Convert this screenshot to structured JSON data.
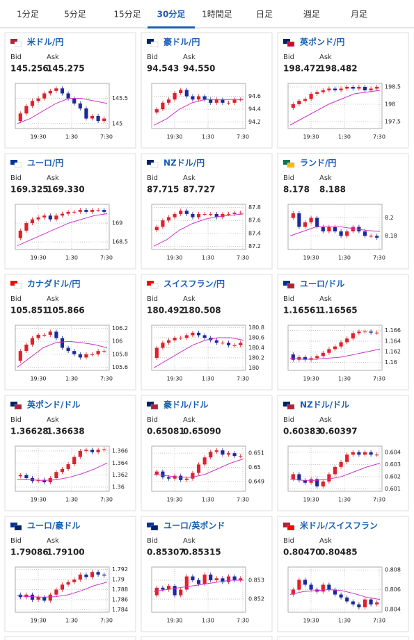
{
  "tabs": [
    "1分足",
    "5分足",
    "15分足",
    "30分足",
    "1時間足",
    "日足",
    "週足",
    "月足"
  ],
  "active_tab": 3,
  "quote_labels": [
    "Bid",
    "Ask"
  ],
  "time_labels": [
    "19:30",
    "1:30",
    "7:30"
  ],
  "colors": {
    "up": "#e0202a",
    "down": "#1c2a9c",
    "ma": "#cc33cc",
    "title": "#1a5fb4"
  },
  "chart_data": [
    {
      "type": "candlestick",
      "title": "米ドル/円",
      "bid": "145.256",
      "ask": "145.275",
      "ylim": [
        144.9,
        145.8
      ],
      "yticks": [
        145,
        145.5
      ],
      "closes": [
        145.05,
        145.2,
        145.35,
        145.45,
        145.5,
        145.6,
        145.65,
        145.7,
        145.6,
        145.5,
        145.4,
        145.3,
        145.1,
        145.15,
        145.05,
        145.1
      ],
      "ma": [
        145.0,
        145.1,
        145.25,
        145.4,
        145.5,
        145.5,
        145.45,
        145.4
      ]
    },
    {
      "type": "candlestick",
      "title": "豪ドル/円",
      "bid": "94.543",
      "ask": "94.550",
      "ylim": [
        94.1,
        94.8
      ],
      "yticks": [
        94.2,
        94.4,
        94.6
      ],
      "closes": [
        94.35,
        94.4,
        94.5,
        94.55,
        94.65,
        94.7,
        94.6,
        94.55,
        94.6,
        94.55,
        94.5,
        94.55,
        94.5,
        94.5,
        94.55,
        94.55
      ],
      "ma": [
        94.15,
        94.25,
        94.4,
        94.5,
        94.55,
        94.55,
        94.55,
        94.55
      ]
    },
    {
      "type": "candlestick",
      "title": "英ポンド/円",
      "bid": "198.472",
      "ask": "198.482",
      "ylim": [
        197.3,
        198.6
      ],
      "yticks": [
        197.5,
        198,
        198.5
      ],
      "closes": [
        197.9,
        198.0,
        198.1,
        198.15,
        198.3,
        198.35,
        198.4,
        198.45,
        198.4,
        198.45,
        198.5,
        198.45,
        198.5,
        198.4,
        198.45,
        198.5
      ],
      "ma": [
        197.4,
        197.6,
        197.8,
        198.0,
        198.15,
        198.3,
        198.35,
        198.4
      ]
    },
    {
      "type": "candlestick",
      "title": "ユーロ/円",
      "bid": "169.325",
      "ask": "169.330",
      "ylim": [
        168.3,
        169.5
      ],
      "yticks": [
        168.5,
        169
      ],
      "closes": [
        168.6,
        168.8,
        169.0,
        169.1,
        169.15,
        169.2,
        169.1,
        169.2,
        169.25,
        169.3,
        169.3,
        169.35,
        169.3,
        169.35,
        169.35,
        169.3
      ],
      "ma": [
        168.4,
        168.55,
        168.7,
        168.85,
        169.0,
        169.1,
        169.2,
        169.25
      ]
    },
    {
      "type": "candlestick",
      "title": "NZドル/円",
      "bid": "87.715",
      "ask": "87.727",
      "ylim": [
        87.15,
        87.85
      ],
      "yticks": [
        87.2,
        87.4,
        87.6,
        87.8
      ],
      "closes": [
        87.45,
        87.5,
        87.6,
        87.65,
        87.7,
        87.75,
        87.7,
        87.65,
        87.7,
        87.7,
        87.7,
        87.65,
        87.7,
        87.7,
        87.72,
        87.72
      ],
      "ma": [
        87.2,
        87.3,
        87.45,
        87.55,
        87.62,
        87.66,
        87.68,
        87.7
      ]
    },
    {
      "type": "candlestick",
      "title": "ランド/円",
      "bid": "8.178",
      "ask": "8.188",
      "ylim": [
        8.165,
        8.215
      ],
      "yticks": [
        8.18,
        8.2
      ],
      "closes": [
        8.2,
        8.205,
        8.19,
        8.195,
        8.2,
        8.19,
        8.185,
        8.19,
        8.185,
        8.18,
        8.185,
        8.19,
        8.185,
        8.18,
        8.18,
        8.178
      ],
      "ma": [
        8.18,
        8.185,
        8.19,
        8.19,
        8.19,
        8.188,
        8.186,
        8.185
      ]
    },
    {
      "type": "candlestick",
      "title": "カナダドル/円",
      "bid": "105.851",
      "ask": "105.866",
      "ylim": [
        105.55,
        106.25
      ],
      "yticks": [
        105.6,
        105.8,
        106,
        106.2
      ],
      "closes": [
        105.7,
        105.85,
        105.95,
        106.05,
        106.1,
        106.1,
        106.15,
        106.05,
        105.9,
        105.85,
        105.8,
        105.75,
        105.8,
        105.8,
        105.85,
        105.85
      ],
      "ma": [
        105.6,
        105.75,
        105.9,
        105.98,
        106.0,
        105.98,
        105.95,
        105.9
      ]
    },
    {
      "type": "candlestick",
      "title": "スイスフラン/円",
      "bid": "180.492",
      "ask": "180.508",
      "ylim": [
        179.95,
        180.85
      ],
      "yticks": [
        180,
        180.2,
        180.4,
        180.6,
        180.8
      ],
      "closes": [
        180.2,
        180.4,
        180.5,
        180.55,
        180.6,
        180.6,
        180.65,
        180.7,
        180.65,
        180.6,
        180.55,
        180.5,
        180.5,
        180.45,
        180.45,
        180.5
      ],
      "ma": [
        180.0,
        180.15,
        180.3,
        180.45,
        180.55,
        180.6,
        180.6,
        180.55
      ]
    },
    {
      "type": "candlestick",
      "title": "ユーロ/ドル",
      "bid": "1.16561",
      "ask": "1.16565",
      "ylim": [
        1.1585,
        1.167
      ],
      "yticks": [
        1.16,
        1.162,
        1.164,
        1.166
      ],
      "closes": [
        1.1615,
        1.1605,
        1.161,
        1.1605,
        1.1608,
        1.1612,
        1.1618,
        1.1625,
        1.163,
        1.1638,
        1.1645,
        1.1655,
        1.1658,
        1.1658,
        1.1656,
        1.1656
      ],
      "ma": [
        1.1608,
        1.1606,
        1.1606,
        1.1608,
        1.161,
        1.1615,
        1.162,
        1.1625
      ]
    },
    {
      "type": "candlestick",
      "title": "英ポンド/ドル",
      "bid": "1.36628",
      "ask": "1.36638",
      "ylim": [
        1.3593,
        1.3668
      ],
      "yticks": [
        1.36,
        1.362,
        1.364,
        1.366
      ],
      "closes": [
        1.3618,
        1.362,
        1.3615,
        1.361,
        1.3612,
        1.3608,
        1.3615,
        1.3625,
        1.363,
        1.3638,
        1.365,
        1.366,
        1.3662,
        1.3658,
        1.3662,
        1.3663
      ],
      "ma": [
        1.3612,
        1.3612,
        1.3611,
        1.3612,
        1.3616,
        1.3622,
        1.363,
        1.364
      ]
    },
    {
      "type": "candlestick",
      "title": "豪ドル/ドル",
      "bid": "0.65081",
      "ask": "0.65090",
      "ylim": [
        0.6483,
        0.6515
      ],
      "yticks": [
        0.649,
        0.65,
        0.651
      ],
      "closes": [
        0.6495,
        0.6497,
        0.6493,
        0.6492,
        0.6494,
        0.6491,
        0.6492,
        0.6496,
        0.6502,
        0.6507,
        0.6511,
        0.6512,
        0.6509,
        0.651,
        0.6508,
        0.6508
      ],
      "ma": [
        0.6495,
        0.6494,
        0.6493,
        0.6493,
        0.6495,
        0.6499,
        0.6503,
        0.6506
      ]
    },
    {
      "type": "candlestick",
      "title": "NZドル/ドル",
      "bid": "0.60383",
      "ask": "0.60397",
      "ylim": [
        0.6008,
        0.6045
      ],
      "yticks": [
        0.601,
        0.602,
        0.603,
        0.604
      ],
      "closes": [
        0.6018,
        0.6022,
        0.6017,
        0.6015,
        0.6018,
        0.6012,
        0.6016,
        0.6022,
        0.6028,
        0.6032,
        0.6038,
        0.604,
        0.6038,
        0.604,
        0.6038,
        0.6038
      ],
      "ma": [
        0.6018,
        0.6017,
        0.6017,
        0.6018,
        0.602,
        0.6024,
        0.6028,
        0.6031
      ]
    },
    {
      "type": "candlestick",
      "title": "ユーロ/豪ドル",
      "bid": "1.79086",
      "ask": "1.79100",
      "ylim": [
        1.7835,
        1.7925
      ],
      "yticks": [
        1.784,
        1.786,
        1.788,
        1.79,
        1.792
      ],
      "closes": [
        1.787,
        1.7865,
        1.787,
        1.786,
        1.7865,
        1.7858,
        1.787,
        1.788,
        1.789,
        1.7895,
        1.79,
        1.791,
        1.7905,
        1.7915,
        1.791,
        1.7908
      ],
      "ma": [
        1.7868,
        1.7866,
        1.7865,
        1.7866,
        1.787,
        1.7878,
        1.7888,
        1.7895
      ]
    },
    {
      "type": "candlestick",
      "title": "ユーロ/英ポンド",
      "bid": "0.85307",
      "ask": "0.85315",
      "ylim": [
        0.8513,
        0.8537
      ],
      "yticks": [
        0.852,
        0.853
      ],
      "closes": [
        0.8522,
        0.8526,
        0.8525,
        0.8527,
        0.8522,
        0.8525,
        0.8532,
        0.853,
        0.8528,
        0.8533,
        0.853,
        0.8531,
        0.8529,
        0.8532,
        0.853,
        0.8531
      ],
      "ma": [
        0.8524,
        0.8525,
        0.8526,
        0.8527,
        0.8528,
        0.8529,
        0.853,
        0.853
      ]
    },
    {
      "type": "candlestick",
      "title": "米ドル/スイスフラン",
      "bid": "0.80470",
      "ask": "0.80485",
      "ylim": [
        0.8037,
        0.8083
      ],
      "yticks": [
        0.804,
        0.806,
        0.808
      ],
      "closes": [
        0.8055,
        0.806,
        0.807,
        0.8065,
        0.806,
        0.8058,
        0.8065,
        0.806,
        0.8055,
        0.8052,
        0.8048,
        0.8045,
        0.8042,
        0.805,
        0.8045,
        0.8047
      ],
      "ma": [
        0.8055,
        0.8058,
        0.8059,
        0.806,
        0.8059,
        0.8056,
        0.8052,
        0.805
      ]
    }
  ]
}
